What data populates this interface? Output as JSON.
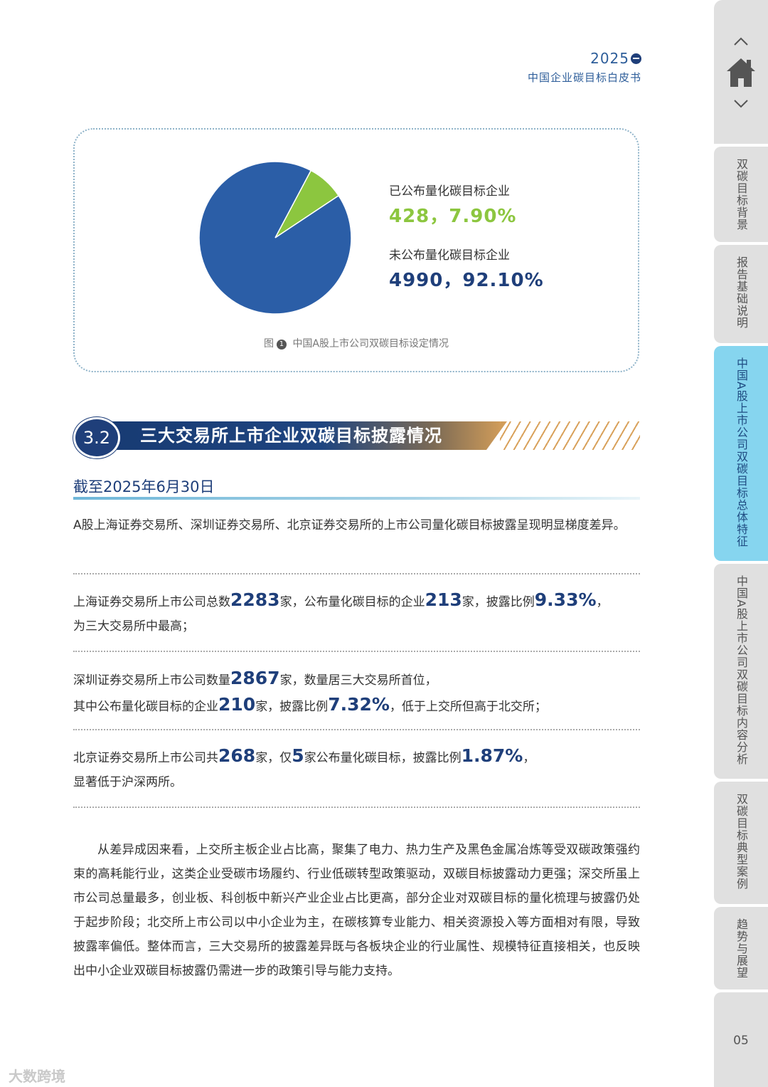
{
  "header": {
    "year": "2025",
    "subtitle": "中国企业碳目标白皮书"
  },
  "chart_data": {
    "type": "pie",
    "slices": [
      {
        "name": "已公布量化碳目标企业",
        "count": 428,
        "percent": 7.9,
        "color": "#8cc63f"
      },
      {
        "name": "未公布量化碳目标企业",
        "count": 4990,
        "percent": 92.1,
        "color": "#2b5ea7"
      }
    ],
    "caption": {
      "prefix": "图",
      "number": "1",
      "text": "中国A股上市公司双碳目标设定情况"
    }
  },
  "legend": {
    "published_label": "已公布量化碳目标企业",
    "published_value": "428，7.90%",
    "unpublished_label": "未公布量化碳目标企业",
    "unpublished_value": "4990，92.10%"
  },
  "section": {
    "number": "3.2",
    "title": "三大交易所上市企业双碳目标披露情况"
  },
  "subhead": "截至2025年6月30日",
  "intro": "A股上海证券交易所、深圳证券交易所、北京证券交易所的上市公司量化碳目标披露呈现明显梯度差异。",
  "sse": {
    "t1": "上海证券交易所上市公司总数",
    "n1": "2283",
    "t2": "家，公布量化碳目标的企业",
    "n2": "213",
    "t3": "家，披露比例",
    "n3": "9.33%",
    "t4": "，",
    "line2": "为三大交易所中最高；"
  },
  "szse": {
    "t1": "深圳证券交易所上市公司数量",
    "n1": "2867",
    "t2": "家，数量居三大交易所首位，",
    "t3": "其中公布量化碳目标的企业",
    "n2": "210",
    "t4": "家，披露比例",
    "n3": "7.32%",
    "t5": "，低于上交所但高于北交所；"
  },
  "bse": {
    "t1": "北京证券交易所上市公司共",
    "n1": "268",
    "t2": "家，仅",
    "n2": "5",
    "t3": "家公布量化碳目标，披露比例",
    "n3": "1.87%",
    "t4": "，",
    "line2": "显著低于沪深两所。"
  },
  "analysis": "从差异成因来看，上交所主板企业占比高，聚集了电力、热力生产及黑色金属冶炼等受双碳政策强约束的高耗能行业，这类企业受碳市场履约、行业低碳转型政策驱动，双碳目标披露动力更强；深交所虽上市公司总量最多，创业板、科创板中新兴产业企业占比更高，部分企业对双碳目标的量化梳理与披露仍处于起步阶段；北交所上市公司以中小企业为主，在碳核算专业能力、相关资源投入等方面相对有限，导致披露率偏低。整体而言，三大交易所的披露差异既与各板块企业的行业属性、规模特征直接相关，也反映出中小企业双碳目标披露仍需进一步的政策引导与能力支持。",
  "sidebar": {
    "up_icon": "chevron-up-icon",
    "home_icon": "home-icon",
    "down_icon": "chevron-down-icon",
    "tabs": [
      "双碳目标背景",
      "报告基础说明",
      "中国A股上市公司双碳目标总体特征",
      "中国A股上市公司双碳目标内容分析",
      "双碳目标典型案例",
      "趋势与展望"
    ],
    "page_number": "05"
  },
  "watermark": "大数跨境"
}
